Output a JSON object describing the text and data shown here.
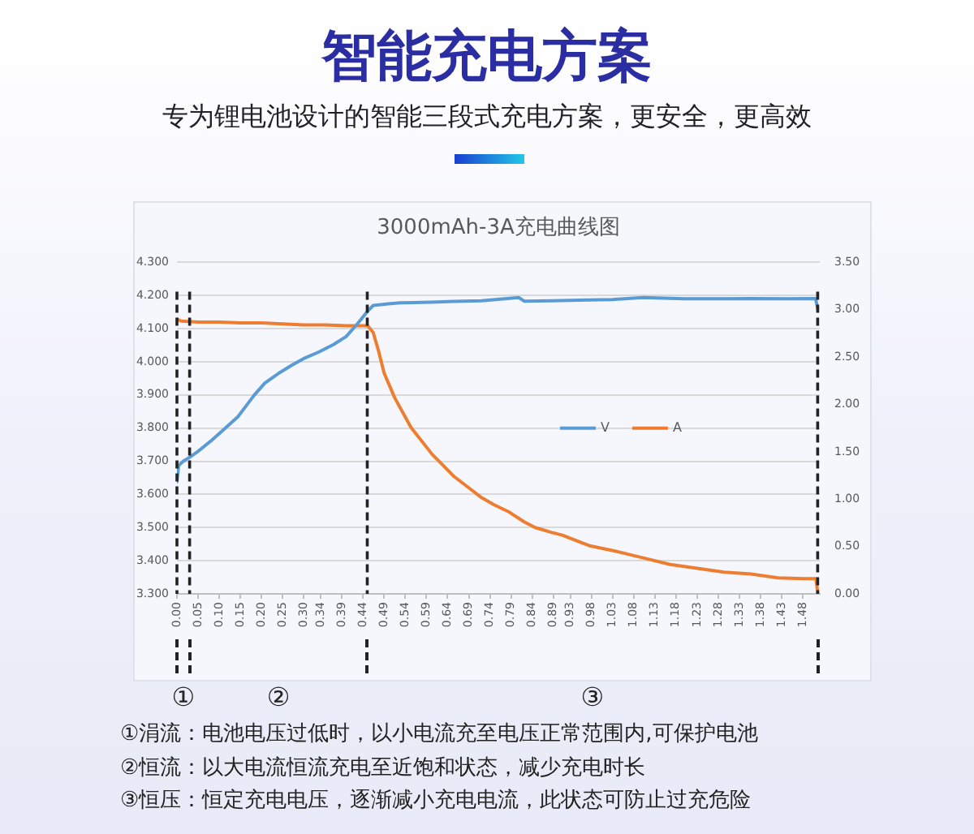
{
  "chart_data": {
    "type": "line",
    "title": "智能充电方案",
    "subtitle": "专为锂电池设计的智能三段式充电方案，更安全，更高效",
    "series": [
      {
        "name": "V",
        "color": "#5b9bd5",
        "x": [
          0,
          0.004,
          0.015,
          0.03,
          0.05,
          0.08,
          0.11,
          0.144,
          0.183,
          0.208,
          0.24,
          0.272,
          0.3,
          0.336,
          0.37,
          0.4,
          0.425,
          0.451,
          0.464,
          0.5,
          0.528,
          0.6,
          0.655,
          0.72,
          0.808,
          0.821,
          0.885,
          0.95,
          1.03,
          1.102,
          1.2,
          1.3,
          1.357,
          1.44,
          1.51,
          1.515
        ],
        "values": [
          3.638,
          3.687,
          3.7,
          3.712,
          3.73,
          3.761,
          3.795,
          3.834,
          3.9,
          3.936,
          3.965,
          3.99,
          4.01,
          4.03,
          4.052,
          4.076,
          4.112,
          4.153,
          4.17,
          4.175,
          4.178,
          4.18,
          4.182,
          4.184,
          4.194,
          4.183,
          4.184,
          4.186,
          4.188,
          4.194,
          4.19,
          4.19,
          4.191,
          4.19,
          4.191,
          4.161
        ]
      },
      {
        "name": "A",
        "color": "#ed7d31",
        "axis": "y2",
        "x": [
          0,
          0.01,
          0.05,
          0.1,
          0.15,
          0.2,
          0.25,
          0.3,
          0.35,
          0.4,
          0.451,
          0.464,
          0.477,
          0.49,
          0.515,
          0.553,
          0.604,
          0.62,
          0.655,
          0.69,
          0.719,
          0.75,
          0.783,
          0.821,
          0.847,
          0.885,
          0.911,
          0.974,
          1.038,
          1.102,
          1.166,
          1.23,
          1.294,
          1.357,
          1.421,
          1.48,
          1.511,
          1.515
        ],
        "values": [
          2.9,
          2.88,
          2.87,
          2.87,
          2.86,
          2.86,
          2.85,
          2.84,
          2.84,
          2.83,
          2.83,
          2.76,
          2.56,
          2.33,
          2.07,
          1.76,
          1.47,
          1.4,
          1.24,
          1.12,
          1.02,
          0.94,
          0.87,
          0.76,
          0.7,
          0.65,
          0.62,
          0.51,
          0.45,
          0.38,
          0.31,
          0.27,
          0.23,
          0.21,
          0.17,
          0.16,
          0.16,
          0.02
        ]
      }
    ],
    "xlim": [
      0,
      1.52
    ],
    "xticks": [
      {
        "value": 0,
        "label": "0.00"
      },
      0.05,
      {
        "value": 0.1,
        "label": "0.10"
      },
      0.15,
      {
        "value": 0.2,
        "label": "0.20"
      },
      0.25,
      {
        "value": 0.3,
        "label": "0.30"
      },
      0.34,
      0.39,
      0.44,
      0.49,
      0.54,
      0.59,
      0.64,
      0.69,
      0.74,
      0.79,
      0.84,
      0.89,
      0.93,
      0.98,
      1.03,
      1.08,
      1.13,
      1.18,
      1.23,
      1.28,
      1.33,
      1.38,
      1.43,
      1.48
    ],
    "ylim": [
      3.3,
      4.3
    ],
    "yticks": [
      {
        "value": 3.3,
        "label": "3.300"
      },
      {
        "value": 3.4,
        "label": "3.400"
      },
      {
        "value": 3.5,
        "label": "3.500"
      },
      {
        "value": 3.6,
        "label": "3.600"
      },
      {
        "value": 3.7,
        "label": "3.700"
      },
      {
        "value": 3.8,
        "label": "3.800"
      },
      {
        "value": 3.9,
        "label": "3.900"
      },
      {
        "value": 4.0,
        "label": "4.000"
      },
      {
        "value": 4.1,
        "label": "4.100"
      },
      {
        "value": 4.2,
        "label": "4.200"
      },
      {
        "value": 4.3,
        "label": "4.300"
      }
    ],
    "y2lim": [
      0,
      3.5
    ],
    "y2ticks": [
      {
        "value": 0,
        "label": "0.00"
      },
      {
        "value": 0.5,
        "label": "0.50"
      },
      {
        "value": 1,
        "label": "1.00"
      },
      {
        "value": 1.5,
        "label": "1.50"
      },
      {
        "value": 2,
        "label": "2.00"
      },
      {
        "value": 2.5,
        "label": "2.50"
      },
      {
        "value": 3,
        "label": "3.00"
      },
      {
        "value": 3.5,
        "label": "3.50"
      }
    ],
    "grid": "y",
    "legend": "right",
    "marker": "none",
    "line_style": "solid",
    "ref_lines": [
      {
        "axis": "x",
        "value": 0,
        "color": "#222222",
        "line_style": "dashed"
      },
      {
        "axis": "x",
        "value": 0.03,
        "color": "#222222",
        "line_style": "dashed"
      },
      {
        "axis": "x",
        "value": 0.45,
        "color": "#222222",
        "line_style": "dashed"
      },
      {
        "axis": "x",
        "value": 1.515,
        "color": "#222222",
        "line_style": "dashed"
      }
    ],
    "annotations": [
      "3000mAh-3A充电曲线图",
      "①",
      "②",
      "③",
      "①涓流：电池电压过低时，以小电流充至电压正常范围内,可保护电池",
      "②恒流：以大电流恒流充电至近饱和状态，减少充电时长",
      "③恒压：恒定充电电压，逐渐减小充电电流，此状态可防止过充危险"
    ]
  }
}
